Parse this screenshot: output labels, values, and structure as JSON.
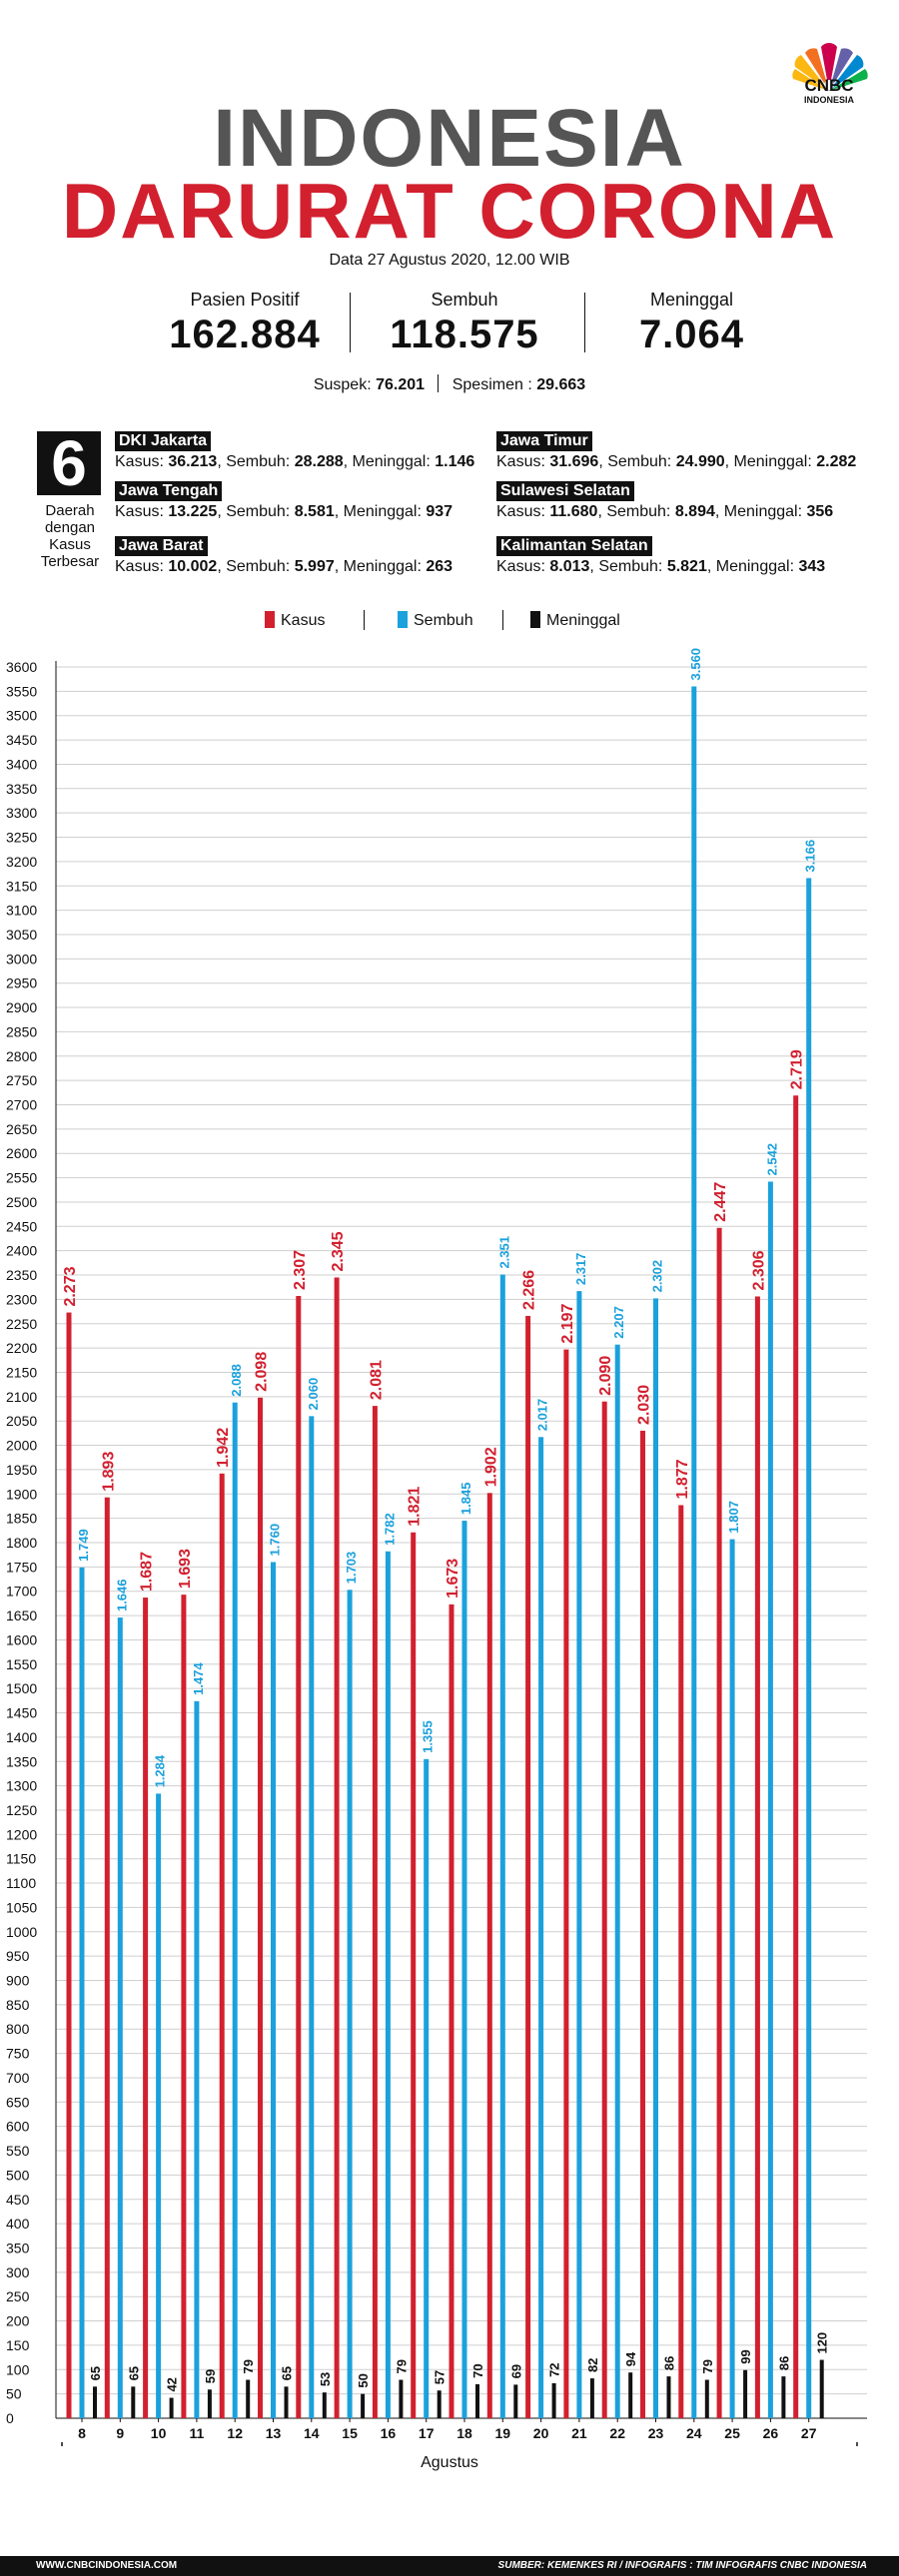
{
  "brand": {
    "name": "CNBC",
    "sub": "INDONESIA"
  },
  "title_line1": "INDONESIA",
  "title_line2": "DARURAT CORONA",
  "date": "Data 27 Agustus 2020, 12.00 WIB",
  "stats": [
    {
      "label": "Pasien Positif",
      "value": "162.884"
    },
    {
      "label": "Sembuh",
      "value": "118.575"
    },
    {
      "label": "Meninggal",
      "value": "7.064"
    }
  ],
  "suspek": {
    "label": "Suspek:",
    "value": "76.201"
  },
  "spesimen": {
    "label": "Spesimen :",
    "value": "29.663"
  },
  "regions_count": "6",
  "regions_caption": [
    "Daerah",
    "dengan",
    "Kasus",
    "Terbesar"
  ],
  "regions": [
    {
      "name": "DKI Jakarta",
      "kasus": "36.213",
      "sembuh": "28.288",
      "meninggal": "1.146"
    },
    {
      "name": "Jawa Tengah",
      "kasus": "13.225",
      "sembuh": "8.581",
      "meninggal": "937"
    },
    {
      "name": "Jawa Barat",
      "kasus": "10.002",
      "sembuh": "5.997",
      "meninggal": "263"
    },
    {
      "name": "Jawa Timur",
      "kasus": "31.696",
      "sembuh": "24.990",
      "meninggal": "2.282"
    },
    {
      "name": "Sulawesi Selatan",
      "kasus": "11.680",
      "sembuh": "8.894",
      "meninggal": "356"
    },
    {
      "name": "Kalimantan Selatan",
      "kasus": "8.013",
      "sembuh": "5.821",
      "meninggal": "343"
    }
  ],
  "region_labels": {
    "kasus": "Kasus:",
    "sembuh": "Sembuh:",
    "meninggal": "Meninggal:"
  },
  "legend": [
    {
      "name": "Kasus",
      "color": "#d2202f"
    },
    {
      "name": "Sembuh",
      "color": "#1ba1dc"
    },
    {
      "name": "Meninggal",
      "color": "#111111"
    }
  ],
  "chart_data": {
    "type": "bar",
    "xlabel": "Agustus",
    "categories": [
      "8",
      "9",
      "10",
      "11",
      "12",
      "13",
      "14",
      "15",
      "16",
      "17",
      "18",
      "19",
      "20",
      "21",
      "22",
      "23",
      "24",
      "25",
      "26",
      "27"
    ],
    "series": [
      {
        "name": "Kasus",
        "color": "#d2202f",
        "values": [
          2273,
          1893,
          1687,
          1693,
          1942,
          2098,
          2307,
          2345,
          2081,
          1821,
          1673,
          1902,
          2266,
          2197,
          2090,
          2030,
          1877,
          2447,
          2306,
          2719
        ],
        "labels": [
          "2.273",
          "1.893",
          "1.687",
          "1.693",
          "1.942",
          "2.098",
          "2.307",
          "2.345",
          "2.081",
          "1.821",
          "1.673",
          "1.902",
          "2.266",
          "2.197",
          "2.090",
          "2.030",
          "1.877",
          "2.447",
          "2.306",
          "2.719"
        ]
      },
      {
        "name": "Sembuh",
        "color": "#1ba1dc",
        "values": [
          1749,
          1646,
          1284,
          1474,
          2088,
          1760,
          2060,
          1703,
          1782,
          1355,
          1845,
          2351,
          2017,
          2317,
          2207,
          2302,
          3560,
          1807,
          2542,
          3166
        ],
        "labels": [
          "1.749",
          "1.646",
          "1.284",
          "1.474",
          "2.088",
          "1.760",
          "2.060",
          "1.703",
          "1.782",
          "1.355",
          "1.845",
          "2.351",
          "2.017",
          "2.317",
          "2.207",
          "2.302",
          "3.560",
          "1.807",
          "2.542",
          "3.166"
        ]
      },
      {
        "name": "Meninggal",
        "color": "#111111",
        "values": [
          65,
          65,
          42,
          59,
          79,
          65,
          53,
          50,
          79,
          57,
          70,
          69,
          72,
          82,
          94,
          86,
          79,
          99,
          86,
          120
        ],
        "labels": [
          "65",
          "65",
          "42",
          "59",
          "79",
          "65",
          "53",
          "50",
          "79",
          "57",
          "70",
          "69",
          "72",
          "82",
          "94",
          "86",
          "79",
          "99",
          "86",
          "120"
        ]
      }
    ],
    "ylim": [
      0,
      3600
    ],
    "yticks": [
      0,
      50,
      100,
      150,
      200,
      250,
      300,
      350,
      400,
      450,
      500,
      550,
      600,
      650,
      700,
      750,
      800,
      850,
      900,
      950,
      1000,
      1050,
      1100,
      1150,
      1200,
      1250,
      1300,
      1350,
      1400,
      1450,
      1500,
      1550,
      1600,
      1650,
      1700,
      1750,
      1800,
      1850,
      1900,
      1950,
      2000,
      2050,
      2100,
      2150,
      2200,
      2250,
      2300,
      2350,
      2400,
      2450,
      2500,
      2550,
      2600,
      2650,
      2700,
      2750,
      2800,
      2850,
      2900,
      2950,
      3000,
      3050,
      3100,
      3150,
      3200,
      3250,
      3300,
      3350,
      3400,
      3450,
      3500,
      3550,
      3600
    ],
    "grid": true
  },
  "footer": {
    "left": "WWW.CNBCINDONESIA.COM",
    "right": "SUMBER: KEMENKES RI / INFOGRAFIS : TIM INFOGRAFIS CNBC INDONESIA"
  }
}
